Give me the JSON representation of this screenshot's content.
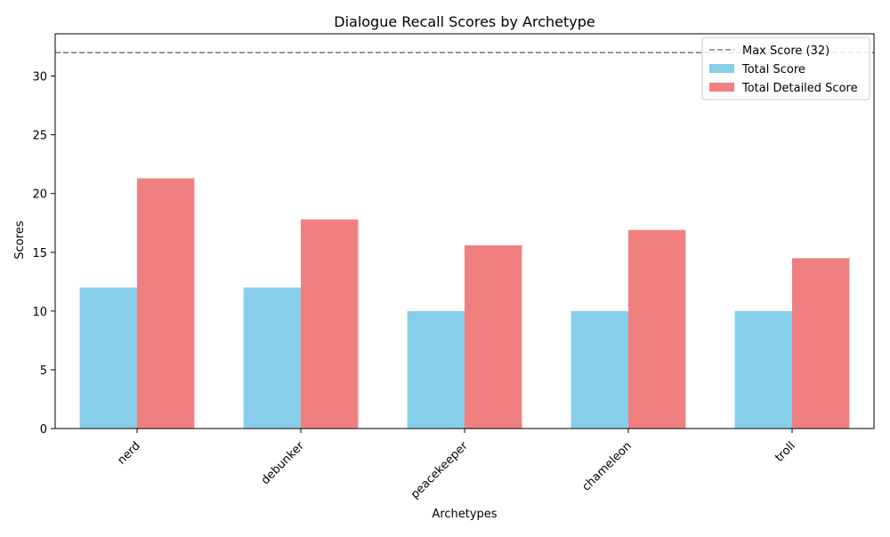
{
  "chart_data": {
    "type": "bar",
    "title": "Dialogue Recall Scores by Archetype",
    "xlabel": "Archetypes",
    "ylabel": "Scores",
    "categories": [
      "nerd",
      "debunker",
      "peacekeeper",
      "chameleon",
      "troll"
    ],
    "series": [
      {
        "name": "Total Score",
        "color": "#87ceeb",
        "values": [
          12,
          12,
          10,
          10,
          10
        ]
      },
      {
        "name": "Total Detailed Score",
        "color": "#f08080",
        "values": [
          21.3,
          17.8,
          15.6,
          16.9,
          14.5
        ]
      }
    ],
    "reference_line": {
      "name": "Max Score (32)",
      "value": 32,
      "color": "#808080",
      "style": "dashed"
    },
    "ylim": [
      0,
      33.6
    ],
    "yticks": [
      0,
      5,
      10,
      15,
      20,
      25,
      30
    ],
    "grid": false,
    "legend_position": "top-right",
    "xtick_rotation": 45
  }
}
